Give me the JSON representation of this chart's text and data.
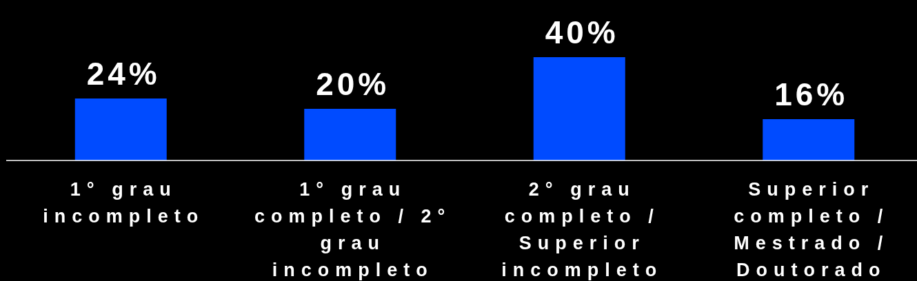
{
  "chart_data": {
    "type": "bar",
    "categories": [
      "1° grau incompleto",
      "1° grau completo / 2° grau incompleto",
      "2° grau completo / Superior incompleto",
      "Superior completo / Mestrado / Doutorado"
    ],
    "values": [
      24,
      20,
      40,
      16
    ],
    "value_labels": [
      "24%",
      "20%",
      "40%",
      "16%"
    ],
    "color": "#004bff",
    "grid": false
  }
}
